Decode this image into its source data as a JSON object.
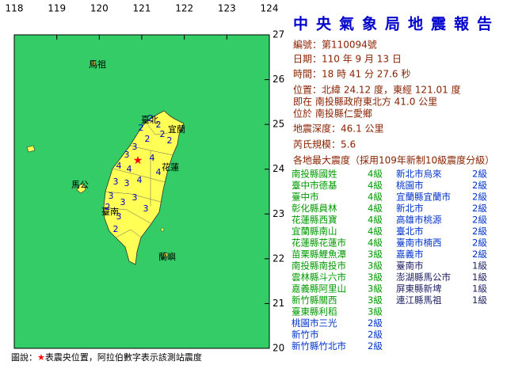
{
  "map": {
    "lon_labels": [
      "118",
      "119",
      "120",
      "121",
      "122",
      "123",
      "124"
    ],
    "lat_labels": [
      "27",
      "26",
      "25",
      "24",
      "23",
      "22",
      "21",
      "20"
    ],
    "places": [
      "馬祖",
      "臺北",
      "宜蘭",
      "花蓮",
      "馬公",
      "臺南",
      "蘭嶼"
    ],
    "station_digits": [
      "2",
      "2",
      "2",
      "2",
      "2",
      "2",
      "3",
      "3",
      "4",
      "4",
      "4",
      "4",
      "3",
      "3",
      "4",
      "3",
      "3",
      "3",
      "2",
      "3",
      "3",
      "2"
    ]
  },
  "legend": {
    "prefix": "圖說：",
    "star": "★",
    "text": "表震央位置，阿拉伯數字表示該測站震度"
  },
  "report": {
    "title": "中央氣象局地震報告",
    "lines": [
      "編號：第110094號",
      "日期：110 年 9 月 13 日",
      "時間：18 時 41 分 27.6 秒",
      "位置：北緯 24.12 度，東經 121.01 度",
      "即在 南投縣政府東北方 41.0 公里",
      "位於 南投縣仁愛鄉",
      "地震深度：46.1 公里",
      "芮氏規模：5.6",
      "各地最大震度（採用109年新制10級震度分級）"
    ],
    "stations_left": [
      {
        "name": "南投縣國姓",
        "level": "4級",
        "color": "#009900"
      },
      {
        "name": "臺中市德基",
        "level": "4級",
        "color": "#009900"
      },
      {
        "name": "臺中市",
        "level": "4級",
        "color": "#009900"
      },
      {
        "name": "彰化縣員林",
        "level": "4級",
        "color": "#009900"
      },
      {
        "name": "花蓮縣西寶",
        "level": "4級",
        "color": "#009900"
      },
      {
        "name": "宜蘭縣南山",
        "level": "4級",
        "color": "#009900"
      },
      {
        "name": "花蓮縣花蓮市",
        "level": "4級",
        "color": "#009900"
      },
      {
        "name": "苗栗縣鯉魚潭",
        "level": "3級",
        "color": "#009900"
      },
      {
        "name": "南投縣南投市",
        "level": "3級",
        "color": "#009900"
      },
      {
        "name": "雲林縣斗六市",
        "level": "3級",
        "color": "#009900"
      },
      {
        "name": "嘉義縣阿里山",
        "level": "3級",
        "color": "#009900"
      },
      {
        "name": "新竹縣關西",
        "level": "3級",
        "color": "#009900"
      },
      {
        "name": "臺東縣利稻",
        "level": "3級",
        "color": "#009900"
      },
      {
        "name": "桃園市三光",
        "level": "2級",
        "color": "#0033cc"
      },
      {
        "name": "新竹市",
        "level": "2級",
        "color": "#0033cc"
      },
      {
        "name": "新竹縣竹北市",
        "level": "2級",
        "color": "#0033cc"
      }
    ],
    "stations_right": [
      {
        "name": "新北市烏來",
        "level": "2級",
        "color": "#0033cc"
      },
      {
        "name": "桃園市",
        "level": "2級",
        "color": "#0033cc"
      },
      {
        "name": "宜蘭縣宜蘭市",
        "level": "2級",
        "color": "#0033cc"
      },
      {
        "name": "新北市",
        "level": "2級",
        "color": "#0033cc"
      },
      {
        "name": "高雄市桃源",
        "level": "2級",
        "color": "#0033cc"
      },
      {
        "name": "臺北市",
        "level": "2級",
        "color": "#0033cc"
      },
      {
        "name": "臺南市楠西",
        "level": "2級",
        "color": "#0033cc"
      },
      {
        "name": "嘉義市",
        "level": "2級",
        "color": "#0033cc"
      },
      {
        "name": "臺南市",
        "level": "1級",
        "color": "#222266"
      },
      {
        "name": "澎湖縣馬公市",
        "level": "1級",
        "color": "#222266"
      },
      {
        "name": "屏東縣新埤",
        "level": "1級",
        "color": "#222266"
      },
      {
        "name": "連江縣馬祖",
        "level": "1級",
        "color": "#222266"
      }
    ]
  }
}
